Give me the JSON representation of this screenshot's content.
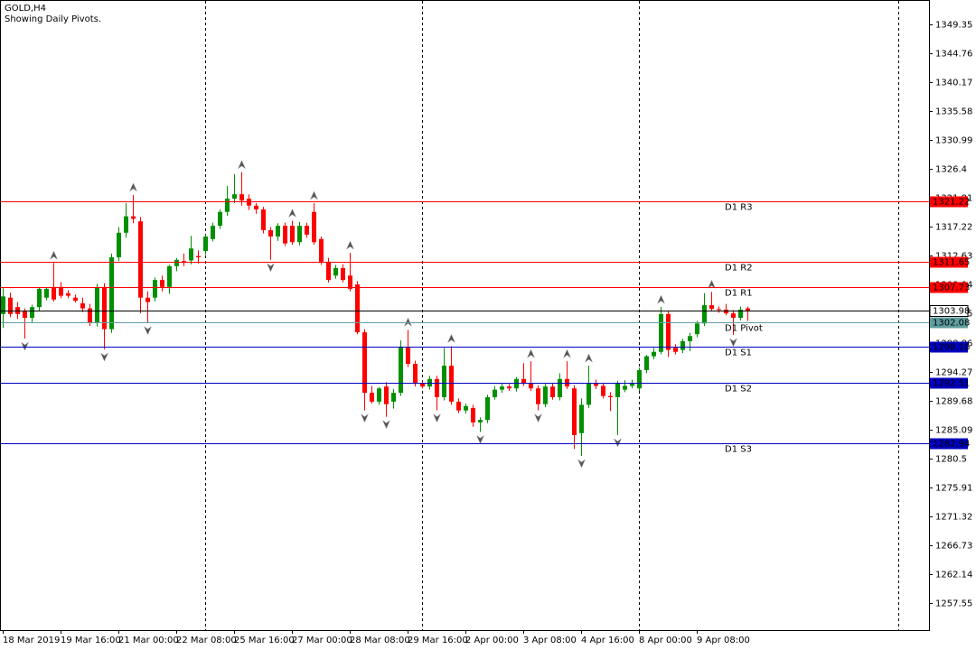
{
  "chart_data": {
    "type": "candlestick",
    "title": "GOLD,H4",
    "subtitle": "Showing Daily Pivots.",
    "categories": [
      "18 Mar 2019",
      null,
      null,
      null,
      null,
      null,
      null,
      null,
      "19 Mar 16:00",
      null,
      null,
      null,
      null,
      null,
      null,
      null,
      "21 Mar 00:00",
      null,
      null,
      null,
      null,
      null,
      null,
      null,
      "22 Mar 08:00",
      null,
      null,
      null,
      null,
      null,
      null,
      null,
      "25 Mar 16:00",
      null,
      null,
      null,
      null,
      null,
      null,
      null,
      "27 Mar 00:00",
      null,
      null,
      null,
      null,
      null,
      null,
      null,
      "28 Mar 08:00",
      null,
      null,
      null,
      null,
      null,
      null,
      null,
      "29 Mar 16:00",
      null,
      null,
      null,
      null,
      null,
      null,
      null,
      "2 Apr 00:00",
      null,
      null,
      null,
      null,
      null,
      null,
      null,
      "3 Apr 08:00",
      null,
      null,
      null,
      null,
      null,
      null,
      null,
      "4 Apr 16:00",
      null,
      null,
      null,
      null,
      null,
      null,
      null,
      "8 Apr 00:00",
      null,
      null,
      null,
      null,
      null,
      null,
      null,
      "9 Apr 08:00",
      null,
      null,
      null,
      null,
      null,
      null,
      null
    ],
    "open": [
      1303.4,
      1306.0,
      1304.5,
      1303.8,
      1302.8,
      1304.5,
      1306.0,
      1307.7,
      1307.7,
      1306.7,
      1306.0,
      1305.1,
      1304.3,
      1302.0,
      1307.7,
      1301.0,
      1312.4,
      1316.3,
      1318.9,
      1318.1,
      1306.0,
      1306.0,
      1308.8,
      1307.7,
      1311.0,
      1311.8,
      1311.9,
      1312.6,
      1313.4,
      1315.3,
      1317.4,
      1319.6,
      1321.7,
      1322.4,
      1321.7,
      1320.6,
      1320.0,
      1316.7,
      1315.7,
      1317.4,
      1317.4,
      1314.8,
      1317.4,
      1319.6,
      1315.3,
      1311.7,
      1309.5,
      1310.7,
      1309.5,
      1308.1,
      1300.5,
      1290.9,
      1289.5,
      1291.9,
      1289.5,
      1290.9,
      1298.1,
      1295.5,
      1292.4,
      1291.9,
      1293.1,
      1290.2,
      1295.2,
      1289.5,
      1288.1,
      1288.5,
      1286.2,
      1286.6,
      1290.2,
      1291.4,
      1291.9,
      1291.6,
      1293.1,
      1292.4,
      1291.6,
      1289.1,
      1291.9,
      1290.2,
      1293.1,
      1291.6,
      1284.5,
      1289.0,
      1292.4,
      1292.0,
      1290.4,
      1290.2,
      1291.4,
      1292.0,
      1291.6,
      1294.5,
      1296.7,
      1297.4,
      1303.4,
      1298.1,
      1297.7,
      1299.1,
      1300.2,
      1301.9,
      1304.8,
      1304.2,
      1304.1,
      1303.5,
      1302.8,
      1304.3
    ],
    "high": [
      1307.5,
      1306.8,
      1305.3,
      1304.3,
      1304.9,
      1307.6,
      1307.7,
      1311.5,
      1308.5,
      1307.2,
      1306.5,
      1306.0,
      1305.0,
      1308.2,
      1308.3,
      1313.0,
      1317.2,
      1321.0,
      1322.3,
      1318.8,
      1307.0,
      1309.2,
      1309.5,
      1311.2,
      1312.3,
      1313.0,
      1315.8,
      1313.5,
      1316.0,
      1317.9,
      1320.0,
      1323.7,
      1325.6,
      1325.9,
      1322.4,
      1321.0,
      1320.4,
      1317.2,
      1317.8,
      1317.9,
      1318.2,
      1318.0,
      1317.9,
      1321.0,
      1315.7,
      1312.3,
      1311.2,
      1311.3,
      1313.1,
      1308.6,
      1301.0,
      1292.0,
      1291.8,
      1292.6,
      1291.5,
      1299.2,
      1300.9,
      1296.0,
      1292.9,
      1293.6,
      1293.6,
      1298.0,
      1298.3,
      1290.0,
      1289.2,
      1289.0,
      1287.0,
      1290.6,
      1292.0,
      1292.4,
      1292.3,
      1293.4,
      1295.6,
      1295.9,
      1292.1,
      1292.3,
      1292.4,
      1294.0,
      1295.9,
      1292.1,
      1290.0,
      1295.2,
      1293.0,
      1292.5,
      1291.0,
      1292.8,
      1292.9,
      1293.0,
      1294.9,
      1296.9,
      1298.0,
      1304.5,
      1303.9,
      1298.6,
      1299.5,
      1300.4,
      1302.3,
      1306.7,
      1306.9,
      1304.6,
      1305.0,
      1304.0,
      1304.6,
      1304.6
    ],
    "low": [
      1301.2,
      1302.9,
      1302.6,
      1299.5,
      1302.1,
      1303.9,
      1305.6,
      1305.4,
      1305.9,
      1305.9,
      1305.2,
      1303.7,
      1301.5,
      1301.4,
      1297.8,
      1300.4,
      1311.8,
      1315.5,
      1317.8,
      1303.5,
      1302.0,
      1305.4,
      1307.0,
      1306.6,
      1310.2,
      1311.0,
      1311.3,
      1311.4,
      1312.8,
      1314.9,
      1316.9,
      1319.0,
      1321.0,
      1320.6,
      1319.9,
      1319.3,
      1316.2,
      1312.0,
      1315.0,
      1314.2,
      1314.4,
      1314.3,
      1315.5,
      1314.4,
      1311.2,
      1308.4,
      1309.0,
      1308.4,
      1307.0,
      1300.2,
      1288.1,
      1289.2,
      1289.0,
      1287.1,
      1288.4,
      1290.4,
      1295.0,
      1291.9,
      1291.6,
      1291.4,
      1288.1,
      1289.7,
      1289.0,
      1287.7,
      1287.6,
      1285.5,
      1284.7,
      1286.1,
      1289.8,
      1290.9,
      1291.2,
      1291.1,
      1292.0,
      1291.2,
      1288.1,
      1288.6,
      1289.8,
      1289.7,
      1291.5,
      1282.0,
      1280.9,
      1288.5,
      1291.5,
      1290.0,
      1288.0,
      1284.2,
      1291.0,
      1291.6,
      1291.2,
      1294.0,
      1296.2,
      1297.0,
      1296.6,
      1297.0,
      1297.2,
      1297.5,
      1299.7,
      1301.5,
      1303.8,
      1303.6,
      1303.2,
      1300.1,
      1302.4,
      1302.3
    ],
    "close": [
      1306.2,
      1303.4,
      1303.4,
      1302.8,
      1304.5,
      1307.4,
      1307.4,
      1305.7,
      1306.3,
      1306.3,
      1305.5,
      1304.3,
      1302.0,
      1307.7,
      1301.0,
      1312.4,
      1316.3,
      1318.9,
      1318.5,
      1306.0,
      1305.3,
      1308.8,
      1307.7,
      1311.0,
      1312.0,
      1311.7,
      1313.8,
      1312.4,
      1315.7,
      1317.4,
      1319.6,
      1321.7,
      1322.4,
      1321.4,
      1320.6,
      1320.0,
      1316.7,
      1315.7,
      1317.4,
      1314.6,
      1314.8,
      1317.4,
      1316.0,
      1314.8,
      1311.7,
      1308.8,
      1310.7,
      1308.8,
      1307.4,
      1300.5,
      1290.9,
      1289.5,
      1291.6,
      1289.1,
      1290.9,
      1298.1,
      1295.5,
      1292.4,
      1291.9,
      1293.1,
      1290.2,
      1295.2,
      1289.5,
      1288.1,
      1288.8,
      1286.2,
      1286.6,
      1290.2,
      1291.4,
      1291.9,
      1291.6,
      1293.1,
      1292.4,
      1291.6,
      1289.1,
      1291.9,
      1290.2,
      1293.1,
      1291.9,
      1284.2,
      1289.0,
      1292.4,
      1292.0,
      1290.4,
      1290.2,
      1292.4,
      1292.0,
      1292.4,
      1294.5,
      1296.7,
      1297.4,
      1303.4,
      1297.7,
      1297.4,
      1299.1,
      1299.9,
      1301.9,
      1304.8,
      1304.2,
      1304.1,
      1303.5,
      1302.8,
      1304.1,
      1303.98
    ],
    "up_color": "#009000",
    "down_color": "#ff0000",
    "levels": [
      {
        "name": "D1 R3",
        "value": 1321.22,
        "color": "#ff0000"
      },
      {
        "name": "D1 R2",
        "value": 1311.65,
        "color": "#ff0000"
      },
      {
        "name": "D1 R1",
        "value": 1307.73,
        "color": "#ff0000"
      },
      {
        "name": "D1 Pivot",
        "value": 1302.08,
        "color": "#5f9ea0"
      },
      {
        "name": "D1 S1",
        "value": 1298.16,
        "color": "#0000c0"
      },
      {
        "name": "D1 S2",
        "value": 1292.51,
        "color": "#0000c0"
      },
      {
        "name": "D1 S3",
        "value": 1282.94,
        "color": "#0000c0"
      }
    ],
    "last_price": 1303.98,
    "ylim": [
      1253.25,
      1353.22
    ],
    "yticks": [
      1349.35,
      1344.76,
      1340.17,
      1335.58,
      1330.99,
      1326.4,
      1321.81,
      1317.22,
      1312.63,
      1308.04,
      1303.45,
      1298.86,
      1294.27,
      1289.68,
      1285.09,
      1280.5,
      1275.91,
      1271.32,
      1266.73,
      1262.14,
      1257.55
    ]
  }
}
